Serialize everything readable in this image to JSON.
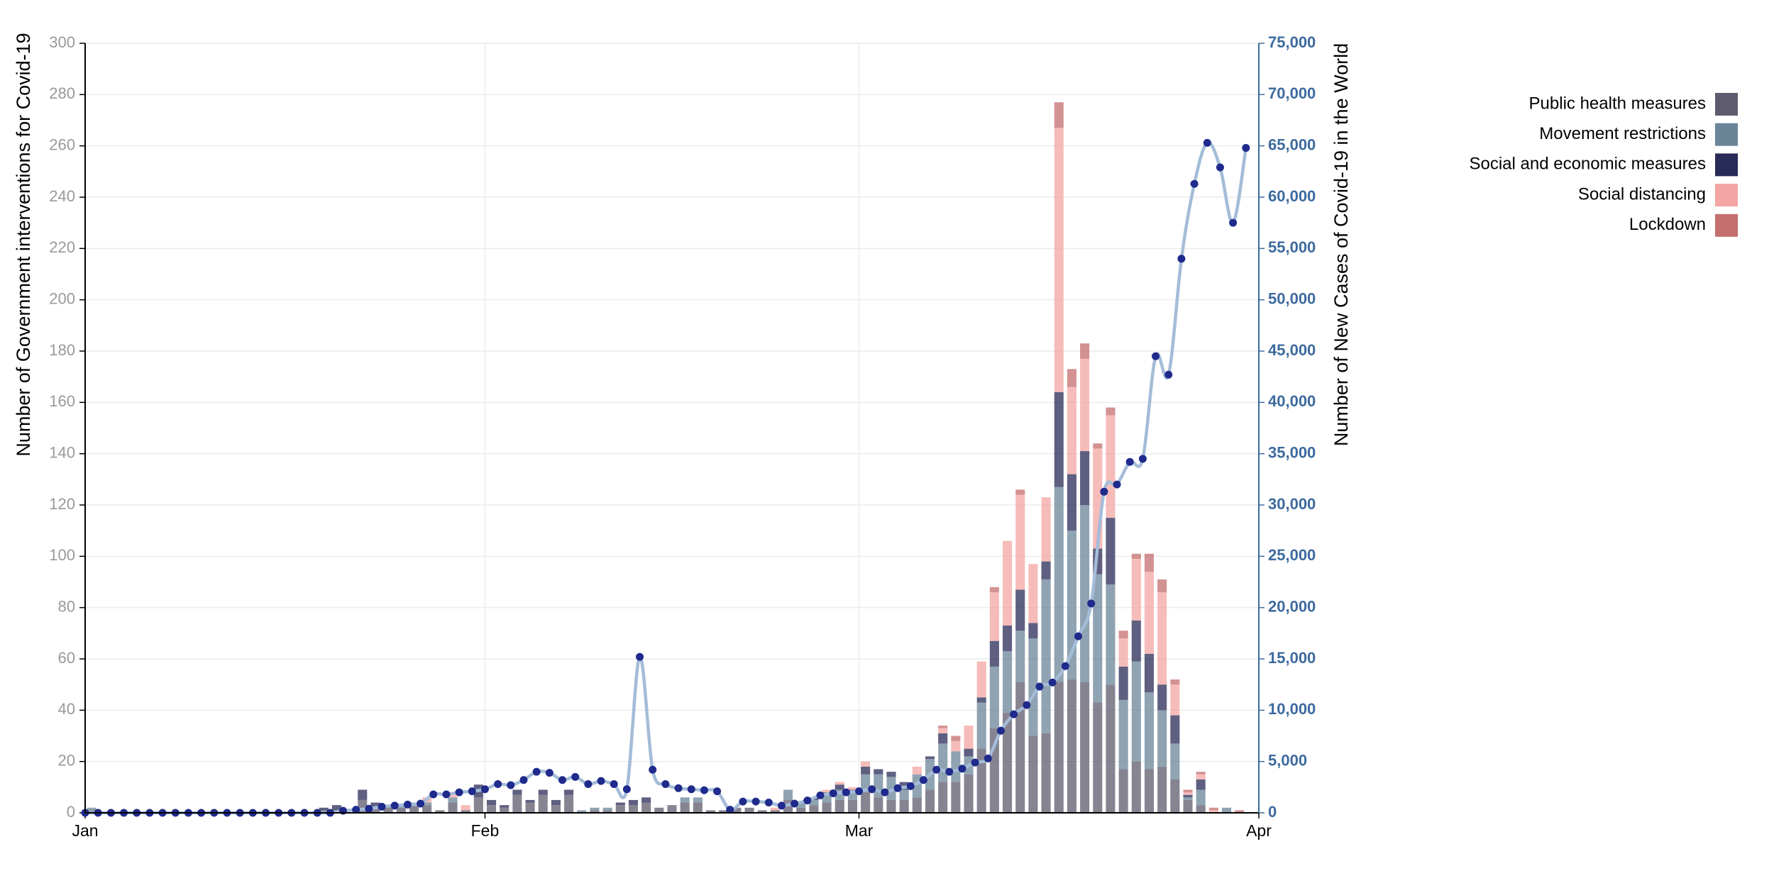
{
  "chart_data": {
    "type": "bar",
    "ylabel": "Number of Government interventions for Covid-19",
    "y2label": "Number of New Cases of Covid-19 in the World",
    "categories": [
      "Jan",
      null,
      null,
      null,
      null,
      null,
      null,
      null,
      null,
      null,
      null,
      null,
      null,
      null,
      null,
      null,
      null,
      null,
      null,
      null,
      null,
      null,
      null,
      null,
      null,
      null,
      null,
      null,
      null,
      null,
      null,
      "Feb",
      null,
      null,
      null,
      null,
      null,
      null,
      null,
      null,
      null,
      null,
      null,
      null,
      null,
      null,
      null,
      null,
      null,
      null,
      null,
      null,
      null,
      null,
      null,
      null,
      null,
      null,
      null,
      null,
      "Mar",
      null,
      null,
      null,
      null,
      null,
      null,
      null,
      null,
      null,
      null,
      null,
      null,
      null,
      null,
      null,
      null,
      null,
      null,
      null,
      null,
      null,
      null,
      null,
      null,
      null,
      null,
      null,
      null,
      null,
      null,
      "Apr"
    ],
    "ylim": [
      0,
      300
    ],
    "yticks": [
      0,
      20,
      40,
      60,
      80,
      100,
      120,
      140,
      160,
      180,
      200,
      220,
      240,
      260,
      280,
      300
    ],
    "y2lim": [
      0,
      75000
    ],
    "y2ticks": [
      0,
      {
        "value": 5000,
        "label": "5,000"
      },
      {
        "value": 10000,
        "label": "10,000"
      },
      {
        "value": 15000,
        "label": "15,000"
      },
      {
        "value": 20000,
        "label": "20,000"
      },
      {
        "value": 25000,
        "label": "25,000"
      },
      {
        "value": 30000,
        "label": "30,000"
      },
      {
        "value": 35000,
        "label": "35,000"
      },
      {
        "value": 40000,
        "label": "40,000"
      },
      {
        "value": 45000,
        "label": "45,000"
      },
      {
        "value": 50000,
        "label": "50,000"
      },
      {
        "value": 55000,
        "label": "55,000"
      },
      {
        "value": 60000,
        "label": "60,000"
      },
      {
        "value": 65000,
        "label": "65,000"
      },
      {
        "value": 70000,
        "label": "70,000"
      },
      {
        "value": 75000,
        "label": "75,000"
      }
    ],
    "grid": true,
    "stacked": true,
    "legend": "top-right",
    "series": [
      {
        "name": "Public health measures",
        "color": "#5f5b6e",
        "values": [
          1,
          0,
          0,
          0,
          0,
          0,
          0,
          0,
          0,
          0,
          0,
          0,
          0,
          0,
          0,
          0,
          0,
          0,
          1,
          1,
          0,
          5,
          2,
          2,
          2,
          3,
          3,
          1,
          4,
          1,
          6,
          3,
          2,
          7,
          4,
          7,
          3,
          7,
          0,
          1,
          1,
          3,
          3,
          4,
          2,
          3,
          4,
          4,
          1,
          1,
          2,
          2,
          1,
          1,
          5,
          2,
          3,
          4,
          5,
          5,
          8,
          6,
          5,
          5,
          6,
          9,
          12,
          12,
          15,
          25,
          33,
          39,
          51,
          30,
          31,
          51,
          52,
          51,
          43,
          50,
          17,
          20,
          17,
          18,
          13,
          5,
          3,
          0,
          0,
          0,
          0,
          null
        ]
      },
      {
        "name": "Movement restrictions",
        "color": "#6a8498",
        "values": [
          1,
          0,
          0,
          0,
          0,
          0,
          0,
          0,
          0,
          0,
          0,
          0,
          0,
          0,
          0,
          0,
          0,
          0,
          0,
          0,
          0,
          0,
          0,
          0,
          1,
          1,
          1,
          0,
          2,
          0,
          0,
          0,
          0,
          0,
          0,
          0,
          0,
          0,
          1,
          1,
          1,
          0,
          0,
          0,
          0,
          0,
          2,
          2,
          0,
          0,
          0,
          0,
          0,
          0,
          4,
          2,
          2,
          3,
          4,
          3,
          7,
          9,
          9,
          4,
          9,
          12,
          15,
          12,
          7,
          18,
          24,
          24,
          20,
          38,
          60,
          76,
          58,
          69,
          50,
          39,
          27,
          39,
          30,
          22,
          14,
          1,
          6,
          0,
          2,
          0,
          0,
          null
        ]
      },
      {
        "name": "Social and economic measures",
        "color": "#282a57",
        "values": [
          0,
          0,
          0,
          0,
          0,
          0,
          0,
          0,
          0,
          0,
          0,
          0,
          0,
          0,
          0,
          0,
          0,
          0,
          1,
          2,
          0,
          4,
          2,
          1,
          0,
          0,
          0,
          0,
          0,
          0,
          5,
          2,
          1,
          2,
          1,
          2,
          2,
          2,
          0,
          0,
          0,
          1,
          2,
          2,
          0,
          0,
          0,
          0,
          0,
          0,
          0,
          0,
          0,
          0,
          0,
          0,
          1,
          1,
          2,
          1,
          3,
          2,
          2,
          3,
          0,
          1,
          4,
          0,
          3,
          2,
          10,
          10,
          16,
          6,
          7,
          37,
          22,
          21,
          10,
          26,
          13,
          16,
          15,
          10,
          11,
          1,
          4,
          0,
          0,
          0,
          0,
          null
        ]
      },
      {
        "name": "Social distancing",
        "color": "#f3a5a3",
        "values": [
          0,
          0,
          0,
          0,
          0,
          0,
          0,
          0,
          0,
          0,
          0,
          0,
          0,
          0,
          0,
          0,
          0,
          0,
          0,
          0,
          0,
          0,
          0,
          0,
          0,
          0,
          2,
          0,
          1,
          2,
          0,
          0,
          0,
          0,
          0,
          0,
          0,
          0,
          0,
          0,
          0,
          0,
          0,
          0,
          0,
          0,
          0,
          0,
          0,
          0,
          0,
          0,
          0,
          1,
          0,
          0,
          0,
          1,
          1,
          1,
          2,
          0,
          0,
          0,
          3,
          0,
          2,
          4,
          9,
          14,
          19,
          33,
          37,
          23,
          25,
          103,
          34,
          36,
          39,
          40,
          11,
          24,
          32,
          36,
          12,
          1,
          2,
          1,
          0,
          0,
          0,
          null
        ]
      },
      {
        "name": "Lockdown",
        "color": "#c46e6e",
        "values": [
          0,
          0,
          0,
          0,
          0,
          0,
          0,
          0,
          0,
          0,
          0,
          0,
          0,
          0,
          0,
          0,
          0,
          0,
          0,
          0,
          0,
          0,
          0,
          0,
          0,
          0,
          0,
          0,
          0,
          0,
          0,
          0,
          0,
          0,
          0,
          0,
          0,
          0,
          0,
          0,
          0,
          0,
          0,
          0,
          0,
          0,
          0,
          0,
          0,
          0,
          0,
          0,
          0,
          0,
          0,
          0,
          0,
          0,
          0,
          0,
          0,
          0,
          0,
          0,
          0,
          0,
          1,
          2,
          0,
          0,
          2,
          0,
          2,
          0,
          0,
          10,
          7,
          6,
          2,
          3,
          3,
          2,
          7,
          5,
          2,
          1,
          1,
          1,
          0,
          1,
          0,
          null
        ]
      },
      {
        "type": "line",
        "axis": "y2",
        "color": "#a4bcd8",
        "point_color": "#1f2a8c",
        "values": [
          0,
          0,
          0,
          0,
          0,
          0,
          0,
          0,
          0,
          0,
          0,
          0,
          0,
          0,
          0,
          0,
          0,
          0,
          0,
          0,
          200,
          300,
          400,
          600,
          700,
          800,
          900,
          1800,
          1800,
          2000,
          2100,
          2300,
          2800,
          2700,
          3200,
          4000,
          3900,
          3200,
          3500,
          2800,
          3100,
          2800,
          2300,
          15200,
          4200,
          2800,
          2400,
          2300,
          2200,
          2100,
          300,
          1100,
          1100,
          1000,
          700,
          900,
          1200,
          1700,
          1900,
          2000,
          2100,
          2300,
          2000,
          2400,
          2600,
          3200,
          4200,
          4000,
          4300,
          4900,
          5300,
          8000,
          9600,
          10500,
          12300,
          12700,
          14300,
          17200,
          20400,
          31300,
          32000,
          34200,
          34500,
          44500,
          42700,
          54000,
          61300,
          65300,
          62900,
          57500,
          64800,
          null
        ]
      }
    ]
  }
}
